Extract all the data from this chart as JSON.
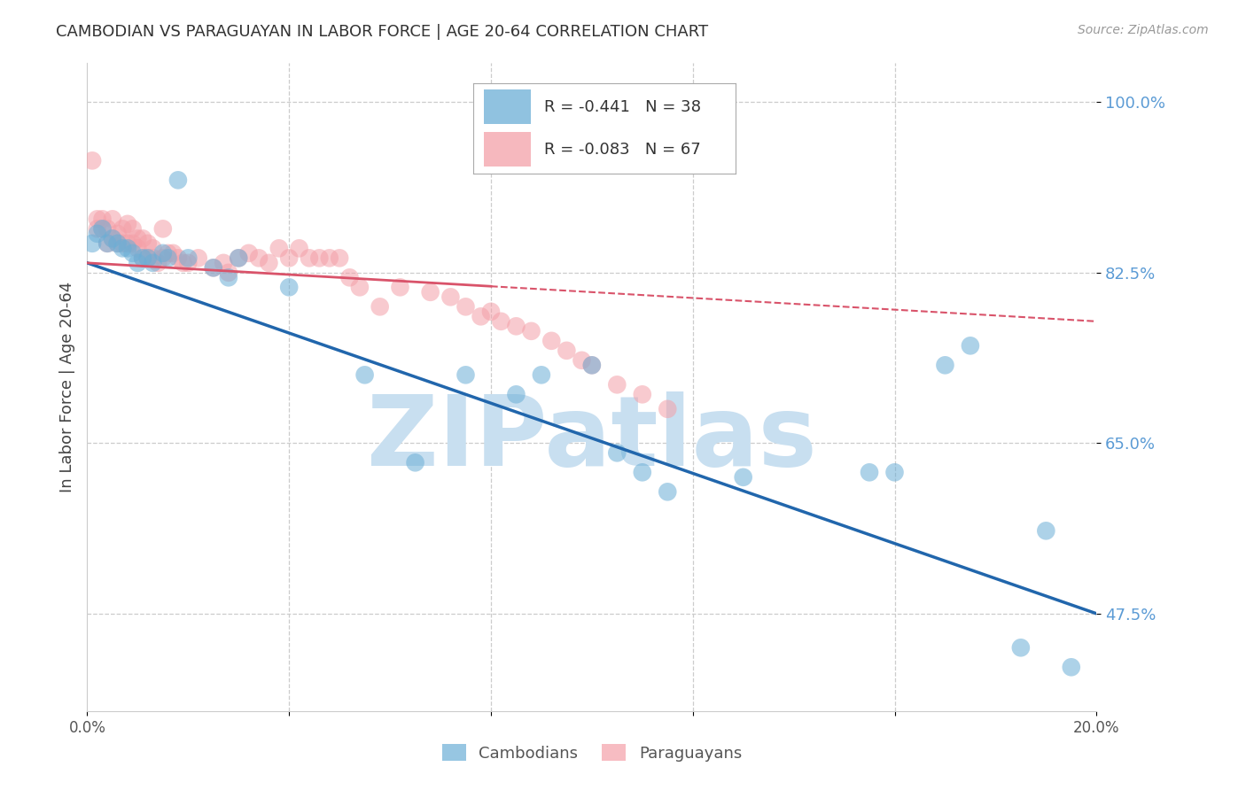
{
  "title": "CAMBODIAN VS PARAGUAYAN IN LABOR FORCE | AGE 20-64 CORRELATION CHART",
  "source": "Source: ZipAtlas.com",
  "ylabel": "In Labor Force | Age 20-64",
  "xlim": [
    0.0,
    0.2
  ],
  "ylim": [
    0.375,
    1.04
  ],
  "yticks": [
    0.475,
    0.65,
    0.825,
    1.0
  ],
  "ytick_labels": [
    "47.5%",
    "65.0%",
    "82.5%",
    "100.0%"
  ],
  "xticks": [
    0.0,
    0.04,
    0.08,
    0.12,
    0.16,
    0.2
  ],
  "xtick_labels": [
    "0.0%",
    "",
    "",
    "",
    "",
    "20.0%"
  ],
  "cambodian_color": "#6baed6",
  "paraguayan_color": "#f4a0a8",
  "trend_cambodian_color": "#2166ac",
  "trend_paraguayan_color": "#d9536a",
  "background_color": "#ffffff",
  "watermark_text": "ZIPatlas",
  "watermark_color": "#c8dff0",
  "legend_R_cambodian": "R = -0.441",
  "legend_N_cambodian": "N = 38",
  "legend_R_paraguayan": "R = -0.083",
  "legend_N_paraguayan": "N = 67",
  "legend_label_cambodian": "Cambodians",
  "legend_label_paraguayan": "Paraguayans",
  "cam_trend_x0": 0.0,
  "cam_trend_y0": 0.835,
  "cam_trend_x1": 0.2,
  "cam_trend_y1": 0.475,
  "par_trend_x0": 0.0,
  "par_trend_y0": 0.835,
  "par_trend_x1": 0.2,
  "par_trend_y1": 0.775,
  "cambodian_x": [
    0.001,
    0.002,
    0.003,
    0.004,
    0.005,
    0.006,
    0.007,
    0.008,
    0.009,
    0.01,
    0.011,
    0.012,
    0.013,
    0.015,
    0.016,
    0.018,
    0.02,
    0.025,
    0.028,
    0.03,
    0.04,
    0.055,
    0.065,
    0.075,
    0.085,
    0.09,
    0.1,
    0.105,
    0.11,
    0.115,
    0.13,
    0.155,
    0.16,
    0.17,
    0.175,
    0.185,
    0.19,
    0.195
  ],
  "cambodian_y": [
    0.855,
    0.865,
    0.87,
    0.855,
    0.86,
    0.855,
    0.85,
    0.85,
    0.845,
    0.835,
    0.84,
    0.84,
    0.835,
    0.845,
    0.84,
    0.92,
    0.84,
    0.83,
    0.82,
    0.84,
    0.81,
    0.72,
    0.63,
    0.72,
    0.7,
    0.72,
    0.73,
    0.64,
    0.62,
    0.6,
    0.615,
    0.62,
    0.62,
    0.73,
    0.75,
    0.44,
    0.56,
    0.42
  ],
  "paraguayan_x": [
    0.001,
    0.002,
    0.002,
    0.003,
    0.003,
    0.004,
    0.004,
    0.005,
    0.005,
    0.006,
    0.006,
    0.007,
    0.007,
    0.008,
    0.008,
    0.009,
    0.009,
    0.01,
    0.01,
    0.011,
    0.011,
    0.012,
    0.012,
    0.013,
    0.013,
    0.014,
    0.015,
    0.015,
    0.016,
    0.017,
    0.018,
    0.019,
    0.02,
    0.022,
    0.025,
    0.027,
    0.028,
    0.03,
    0.032,
    0.034,
    0.036,
    0.038,
    0.04,
    0.042,
    0.044,
    0.046,
    0.048,
    0.05,
    0.052,
    0.054,
    0.058,
    0.062,
    0.068,
    0.072,
    0.075,
    0.078,
    0.08,
    0.082,
    0.085,
    0.088,
    0.092,
    0.095,
    0.098,
    0.1,
    0.105,
    0.11,
    0.115
  ],
  "paraguayan_y": [
    0.94,
    0.88,
    0.87,
    0.88,
    0.87,
    0.87,
    0.855,
    0.88,
    0.86,
    0.865,
    0.855,
    0.87,
    0.855,
    0.875,
    0.855,
    0.87,
    0.855,
    0.86,
    0.85,
    0.86,
    0.84,
    0.855,
    0.84,
    0.85,
    0.84,
    0.835,
    0.84,
    0.87,
    0.845,
    0.845,
    0.84,
    0.835,
    0.835,
    0.84,
    0.83,
    0.835,
    0.825,
    0.84,
    0.845,
    0.84,
    0.835,
    0.85,
    0.84,
    0.85,
    0.84,
    0.84,
    0.84,
    0.84,
    0.82,
    0.81,
    0.79,
    0.81,
    0.805,
    0.8,
    0.79,
    0.78,
    0.785,
    0.775,
    0.77,
    0.765,
    0.755,
    0.745,
    0.735,
    0.73,
    0.71,
    0.7,
    0.685
  ]
}
